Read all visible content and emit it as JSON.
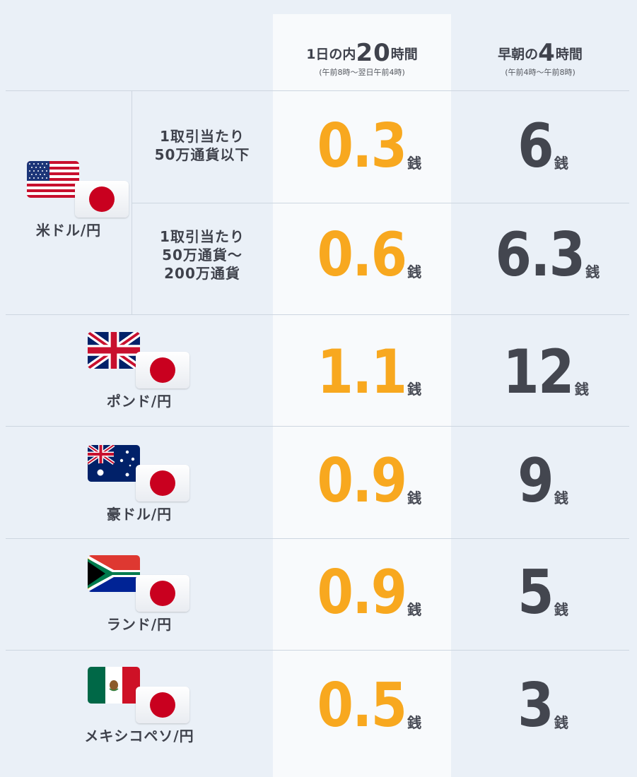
{
  "header": {
    "col1": {
      "prefix": "1日の内",
      "big": "20",
      "suffix": "時間",
      "sub": "(午前8時～翌日午前4時)"
    },
    "col2": {
      "prefix": "早朝の",
      "big": "4",
      "suffix": "時間",
      "sub": "(午前4時～午前8時)"
    }
  },
  "unit": "銭",
  "usd": {
    "label": "米ドル/円",
    "tiers": [
      {
        "condition": [
          "1取引当たり",
          "50万通貨以下"
        ],
        "day": "0.3",
        "morning": "6"
      },
      {
        "condition": [
          "1取引当たり",
          "50万通貨～",
          "200万通貨"
        ],
        "day": "0.6",
        "morning": "6.3"
      }
    ]
  },
  "pairs": [
    {
      "label": "ポンド/円",
      "day": "1.1",
      "morning": "12"
    },
    {
      "label": "豪ドル/円",
      "day": "0.9",
      "morning": "9"
    },
    {
      "label": "ランド/円",
      "day": "0.9",
      "morning": "5"
    },
    {
      "label": "メキシコペソ/円",
      "day": "0.5",
      "morning": "3"
    }
  ],
  "colors": {
    "highlight": "#f8a81f",
    "dark": "#43464f",
    "japan_red": "#c9001f"
  },
  "icons": [
    "flag-us-icon",
    "flag-jp-icon",
    "flag-uk-icon",
    "flag-au-icon",
    "flag-za-icon",
    "flag-mx-icon"
  ]
}
